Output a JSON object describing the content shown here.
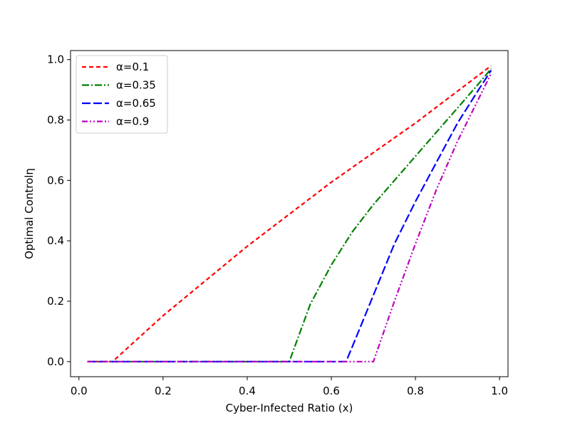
{
  "chart_data": {
    "type": "line",
    "title": "",
    "xlabel": "Cyber-Infected Ratio (x)",
    "ylabel": "Optimal Controlη",
    "xlim": [
      -0.02,
      1.02
    ],
    "ylim": [
      -0.05,
      1.03
    ],
    "xticks": [
      0.0,
      0.2,
      0.4,
      0.6,
      0.8,
      1.0
    ],
    "xtick_labels": [
      "0.0",
      "0.2",
      "0.4",
      "0.6",
      "0.8",
      "1.0"
    ],
    "yticks": [
      0.0,
      0.2,
      0.4,
      0.6,
      0.8,
      1.0
    ],
    "ytick_labels": [
      "0.0",
      "0.2",
      "0.4",
      "0.6",
      "0.8",
      "1.0"
    ],
    "grid": false,
    "legend_position": "top-left",
    "series": [
      {
        "name": "α=0.1",
        "color": "#ff0000",
        "dash": "6,4",
        "x": [
          0.02,
          0.08,
          0.2,
          0.4,
          0.6,
          0.8,
          0.98
        ],
        "y": [
          0.0,
          0.0,
          0.152,
          0.382,
          0.594,
          0.79,
          0.98
        ]
      },
      {
        "name": "α=0.35",
        "color": "#008000",
        "dash": "10,3,2,3",
        "x": [
          0.02,
          0.5,
          0.55,
          0.6,
          0.65,
          0.7,
          0.75,
          0.8,
          0.85,
          0.9,
          0.95,
          0.98
        ],
        "y": [
          0.0,
          0.0,
          0.19,
          0.32,
          0.43,
          0.52,
          0.6,
          0.68,
          0.76,
          0.84,
          0.92,
          0.97
        ]
      },
      {
        "name": "α=0.65",
        "color": "#0000ff",
        "dash": "12,4",
        "x": [
          0.02,
          0.635,
          0.65,
          0.7,
          0.75,
          0.8,
          0.85,
          0.9,
          0.95,
          0.98
        ],
        "y": [
          0.0,
          0.0,
          0.05,
          0.22,
          0.39,
          0.53,
          0.66,
          0.79,
          0.9,
          0.965
        ]
      },
      {
        "name": "α=0.9",
        "color": "#bf00bf",
        "dash": "8,3,2,3,2,3",
        "x": [
          0.02,
          0.7,
          0.75,
          0.8,
          0.85,
          0.9,
          0.95,
          0.98
        ],
        "y": [
          0.0,
          0.0,
          0.2,
          0.39,
          0.57,
          0.73,
          0.87,
          0.955
        ]
      }
    ]
  }
}
